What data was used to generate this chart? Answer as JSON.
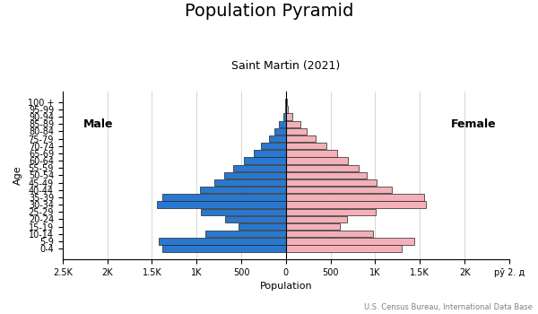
{
  "title": "Population Pyramid",
  "subtitle": "Saint Martin (2021)",
  "xlabel": "Population",
  "ylabel": "Age",
  "footnote": "U.S. Census Bureau, International Data Base",
  "age_groups": [
    "0-4",
    "5-9",
    "10-14",
    "15-19",
    "20-24",
    "25-29",
    "30-34",
    "35-39",
    "40-44",
    "45-49",
    "50-54",
    "55-59",
    "60-64",
    "65-69",
    "70-74",
    "75-79",
    "80-84",
    "85-89",
    "90-94",
    "95-99",
    "100 +"
  ],
  "male": [
    1380,
    1420,
    900,
    530,
    680,
    950,
    1440,
    1380,
    960,
    800,
    690,
    590,
    470,
    360,
    275,
    185,
    125,
    75,
    30,
    8,
    4
  ],
  "female": [
    1300,
    1440,
    980,
    600,
    680,
    1010,
    1570,
    1550,
    1190,
    1020,
    910,
    810,
    690,
    570,
    455,
    330,
    235,
    165,
    75,
    22,
    10
  ],
  "male_color": "#2878d0",
  "female_color": "#f4b0b8",
  "bar_edgecolor": "#222222",
  "bar_linewidth": 0.5,
  "xlim": [
    -2500,
    2500
  ],
  "xtick_vals": [
    -2500,
    -2000,
    -1500,
    -1000,
    -500,
    0,
    500,
    1000,
    1500,
    2000,
    2500
  ],
  "xtick_labels": [
    "2.5K",
    "2K",
    "1.5K",
    "1K",
    "500",
    "0",
    "500",
    "1K",
    "1.5K",
    "2K",
    "pȳ 2. д"
  ],
  "background_color": "#ffffff",
  "grid_color": "#d0d0d0",
  "male_label": "Male",
  "female_label": "Female",
  "title_fontsize": 14,
  "subtitle_fontsize": 9,
  "label_fontsize": 8,
  "tick_fontsize": 7,
  "footnote_fontsize": 6
}
